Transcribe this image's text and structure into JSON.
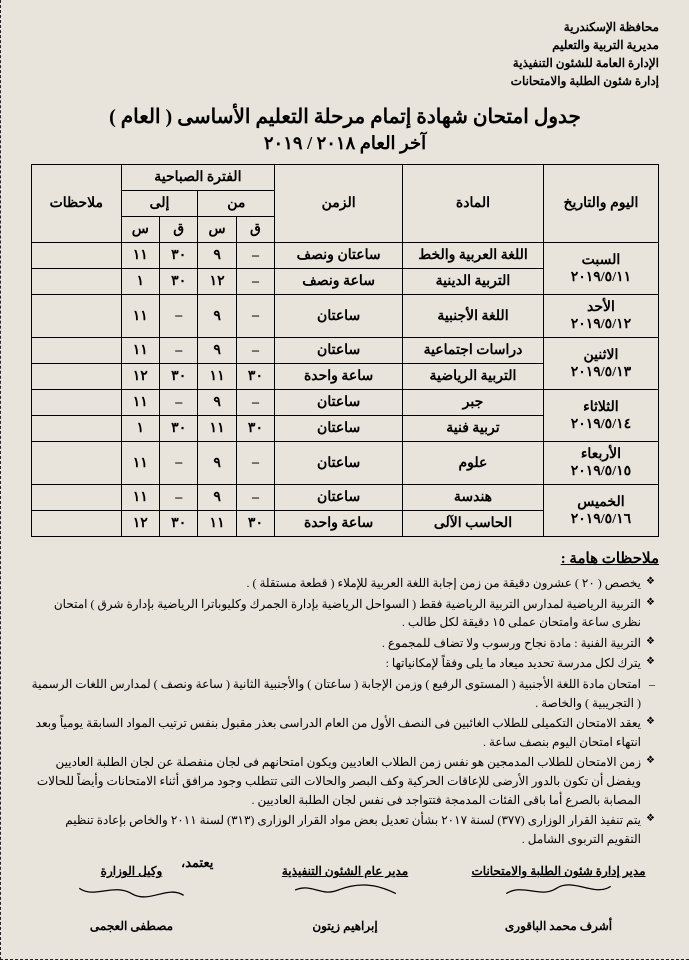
{
  "header": {
    "l1": "محافظة الإسكندرية",
    "l2": "مديرية التربية والتعليم",
    "l3": "الإدارة العامة للشئون التنفيذية",
    "l4": "إدارة شئون الطلبة والامتحانات"
  },
  "title": "جدول امتحان شهادة إتمام مرحلة التعليم الأساسى ( العام )",
  "subtitle": "آخر العام ٢٠١٨ / ٢٠١٩",
  "table": {
    "head": {
      "date": "اليوم والتاريخ",
      "subject": "المادة",
      "time": "الزمن",
      "period": "الفترة الصباحية",
      "from": "من",
      "to": "إلى",
      "q": "ق",
      "s": "س",
      "notes": "ملاحظات"
    },
    "rows": [
      {
        "date": [
          "السبت",
          "٢٠١٩/٥/١١"
        ],
        "subjects": [
          {
            "subject": "اللغة العربية والخط",
            "time": "ساعتان ونصف",
            "fq": "–",
            "fs": "٩",
            "tq": "٣٠",
            "ts": "١١",
            "note": ""
          },
          {
            "subject": "التربية الدينية",
            "time": "ساعة ونصف",
            "fq": "–",
            "fs": "١٢",
            "tq": "٣٠",
            "ts": "١",
            "note": ""
          }
        ]
      },
      {
        "date": [
          "الأحد",
          "٢٠١٩/٥/١٢"
        ],
        "subjects": [
          {
            "subject": "اللغة الأجنبية",
            "time": "ساعتان",
            "fq": "–",
            "fs": "٩",
            "tq": "–",
            "ts": "١١",
            "note": ""
          }
        ]
      },
      {
        "date": [
          "الاثنين",
          "٢٠١٩/٥/١٣"
        ],
        "subjects": [
          {
            "subject": "دراسات اجتماعية",
            "time": "ساعتان",
            "fq": "–",
            "fs": "٩",
            "tq": "–",
            "ts": "١١",
            "note": ""
          },
          {
            "subject": "التربية الرياضية",
            "time": "ساعة واحدة",
            "fq": "٣٠",
            "fs": "١١",
            "tq": "٣٠",
            "ts": "١٢",
            "note": ""
          }
        ]
      },
      {
        "date": [
          "الثلاثاء",
          "٢٠١٩/٥/١٤"
        ],
        "subjects": [
          {
            "subject": "جبر",
            "time": "ساعتان",
            "fq": "–",
            "fs": "٩",
            "tq": "–",
            "ts": "١١",
            "note": ""
          },
          {
            "subject": "تربية فنية",
            "time": "ساعتان",
            "fq": "٣٠",
            "fs": "١١",
            "tq": "٣٠",
            "ts": "١",
            "note": ""
          }
        ]
      },
      {
        "date": [
          "الأربعاء",
          "٢٠١٩/٥/١٥"
        ],
        "subjects": [
          {
            "subject": "علوم",
            "time": "ساعتان",
            "fq": "–",
            "fs": "٩",
            "tq": "–",
            "ts": "١١",
            "note": ""
          }
        ]
      },
      {
        "date": [
          "الخميس",
          "٢٠١٩/٥/١٦"
        ],
        "subjects": [
          {
            "subject": "هندسة",
            "time": "ساعتان",
            "fq": "–",
            "fs": "٩",
            "tq": "–",
            "ts": "١١",
            "note": ""
          },
          {
            "subject": "الحاسب الآلى",
            "time": "ساعة واحدة",
            "fq": "٣٠",
            "fs": "١١",
            "tq": "٣٠",
            "ts": "١٢",
            "note": ""
          }
        ]
      }
    ]
  },
  "notes_head": "ملاحظات هامة :",
  "notes": [
    {
      "t": "item",
      "text": "يخصص ( ٢٠ ) عشرون دقيقة من زمن إجابة اللغة العربية للإملاء ( قطعة مستقلة ) ."
    },
    {
      "t": "item",
      "text": "التربية الرياضية لمدارس التربية الرياضية فقط ( السواحل الرياضية بإدارة الجمرك وكليوباترا الرياضية بإدارة شرق ) امتحان نظرى ساعة وامتحان عملى ١٥ دقيقة لكل طالب ."
    },
    {
      "t": "item",
      "text": "التربية الفنية : مادة نجاح ورسوب ولا تضاف للمجموع ."
    },
    {
      "t": "item",
      "text": "يترك لكل مدرسة تحديد ميعاد ما يلى وفقاً لإمكانياتها :"
    },
    {
      "t": "dash",
      "text": "امتحان مادة اللغة الأجنبية ( المستوى الرفيع ) وزمن الإجابة ( ساعتان ) والأجنبية الثانية ( ساعة ونصف ) لمدارس اللغات الرسمية ( التجريبية ) والخاصة ."
    },
    {
      "t": "item",
      "text": "يعقد الامتحان التكميلى للطلاب الغائبين فى النصف الأول من العام الدراسى بعذر مقبول بنفس ترتيب المواد السابقة يومياً وبعد انتهاء امتحان اليوم بنصف ساعة ."
    },
    {
      "t": "item",
      "text": "زمن الامتحان للطلاب المدمجين هو نفس زمن الطلاب العاديين ويكون امتحانهم فى لجان منفصلة عن لجان الطلبة العاديين ويفضل أن تكون بالدور الأرضى للإعاقات الحركية وكف البصر والحالات التى تتطلب وجود مرافق أثناء الامتحانات وأيضاً للحالات المصابة بالصرع أما باقى الفئات المدمجة فتتواجد فى نفس لجان الطلبة العاديين ."
    },
    {
      "t": "item",
      "text": "يتم تنفيذ القرار الوزارى (٣٧٧) لسنة ٢٠١٧ بشأن تعديل بعض مواد القرار الوزارى (٣١٣) لسنة ٢٠١١ والخاص بإعادة تنظيم التقويم التربوى الشامل ."
    }
  ],
  "sigs": {
    "r1": {
      "role": "مدير إدارة شئون الطلبة والامتحانات",
      "name": "أشرف محمد الباقورى"
    },
    "r2": {
      "role": "مدير عام الشئون التنفيذية",
      "name": "إبراهيم زيتون"
    },
    "r3": {
      "role": "وكيل الوزارة",
      "name": "مصطفى العجمى"
    },
    "approve": "يعتمد،"
  }
}
